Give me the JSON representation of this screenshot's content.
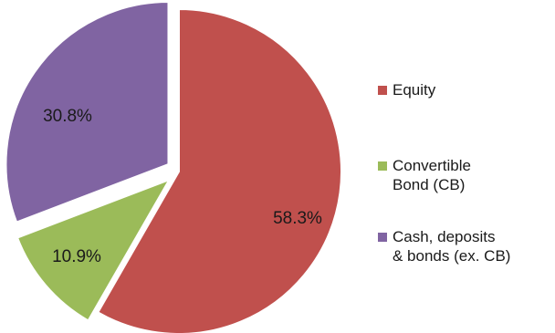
{
  "chart_data": {
    "type": "pie",
    "title": "",
    "slices": [
      {
        "name": "Equity",
        "value": 58.3,
        "label": "58.3%",
        "color": "#c0504d",
        "exploded": false
      },
      {
        "name": "Convertible Bond (CB)",
        "value": 10.9,
        "label": "10.9%",
        "color": "#9bbb59",
        "exploded": true
      },
      {
        "name": "Cash, deposits & bonds (ex. CB)",
        "value": 30.8,
        "label": "30.8%",
        "color": "#8064a2",
        "exploded": true
      }
    ],
    "legend": {
      "position": "right",
      "entries": [
        {
          "label": "Equity",
          "color": "#c0504d"
        },
        {
          "label": "Convertible\nBond (CB)",
          "color": "#9bbb59"
        },
        {
          "label": "Cash, deposits\n& bonds (ex. CB)",
          "color": "#8064a2"
        }
      ]
    }
  }
}
